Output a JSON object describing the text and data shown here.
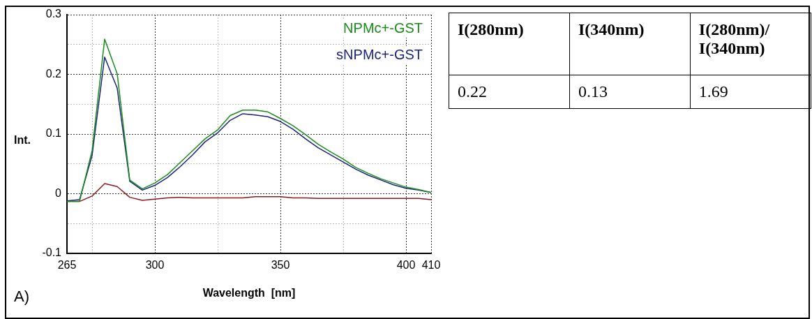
{
  "chart_data": {
    "type": "line",
    "xlabel": "Wavelength  [nm]",
    "ylabel": "Int.",
    "x": [
      265,
      270,
      275,
      280,
      285,
      290,
      295,
      300,
      305,
      310,
      315,
      320,
      325,
      330,
      335,
      340,
      345,
      350,
      355,
      360,
      365,
      370,
      375,
      380,
      385,
      390,
      395,
      400,
      405,
      410
    ],
    "series": [
      {
        "name": "NPMc+-GST",
        "color": "#1a8c1a",
        "values": [
          -0.013,
          -0.013,
          0.072,
          0.259,
          0.201,
          0.023,
          0.008,
          0.018,
          0.032,
          0.052,
          0.072,
          0.092,
          0.107,
          0.131,
          0.14,
          0.14,
          0.137,
          0.126,
          0.114,
          0.099,
          0.083,
          0.07,
          0.058,
          0.044,
          0.034,
          0.025,
          0.018,
          0.011,
          0.007,
          0.002
        ]
      },
      {
        "name": "sNPMc+-GST",
        "color": "#1a237e",
        "values": [
          -0.012,
          -0.01,
          0.064,
          0.229,
          0.177,
          0.021,
          0.006,
          0.014,
          0.027,
          0.045,
          0.065,
          0.087,
          0.102,
          0.123,
          0.134,
          0.132,
          0.129,
          0.121,
          0.108,
          0.092,
          0.077,
          0.065,
          0.053,
          0.041,
          0.031,
          0.023,
          0.015,
          0.009,
          0.006,
          0.002
        ]
      },
      {
        "color": "#8b1a1a",
        "values": [
          -0.013,
          -0.013,
          -0.004,
          0.017,
          0.012,
          -0.006,
          -0.011,
          -0.009,
          -0.007,
          -0.006,
          -0.007,
          -0.007,
          -0.007,
          -0.007,
          -0.007,
          -0.005,
          -0.005,
          -0.005,
          -0.007,
          -0.007,
          -0.008,
          -0.008,
          -0.008,
          -0.008,
          -0.008,
          -0.008,
          -0.008,
          -0.008,
          -0.008,
          -0.01
        ]
      }
    ],
    "xlim": [
      265,
      410
    ],
    "xticks": [
      265,
      {
        "value": 275,
        "label": null
      },
      300,
      {
        "value": 325,
        "label": null
      },
      350,
      {
        "value": 375,
        "label": null
      },
      400,
      410
    ],
    "ylim": [
      -0.1,
      0.3
    ],
    "yticks": [
      -0.1,
      {
        "value": -0.05,
        "label": null
      },
      0,
      {
        "value": 0.05,
        "label": null
      },
      0.1,
      {
        "value": 0.15,
        "label": null
      },
      0.2,
      {
        "value": 0.25,
        "label": null
      },
      0.3
    ],
    "grid": true,
    "legend": "top right",
    "marker": "none",
    "line_style": "solid",
    "annotations": [
      "A)",
      "I(280nm)",
      "I(340nm)",
      "I(280nm)/ I(340nm)",
      "0.22",
      "0.13",
      "1.69"
    ]
  }
}
